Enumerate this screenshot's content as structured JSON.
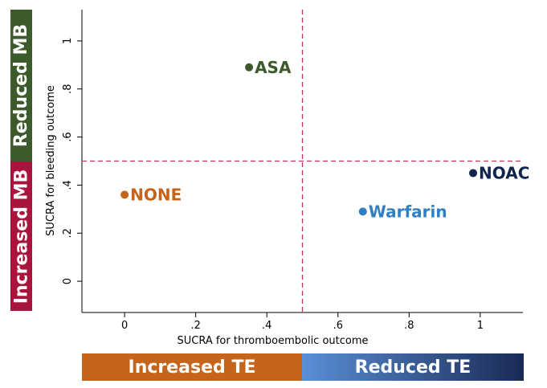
{
  "bands": {
    "reduced_mb": "Reduced MB",
    "increased_mb": "Increased MB",
    "increased_te": "Increased TE",
    "reduced_te": "Reduced TE"
  },
  "colors": {
    "reduced_mb": "#3c5a2a",
    "increased_mb": "#a8143c",
    "increased_te": "#c5641a",
    "reduced_te_start": "#5a8fd6",
    "reduced_te_end": "#1a2a55",
    "reference_lines": "#c8325a"
  },
  "chart_data": {
    "type": "scatter",
    "xlabel": "SUCRA for thromboembolic outcome",
    "ylabel": "SUCRA for bleeding outcome",
    "xlim": [
      -0.12,
      1.12
    ],
    "ylim": [
      -0.13,
      1.13
    ],
    "xticks": [
      0,
      0.2,
      0.4,
      0.6,
      0.8,
      1
    ],
    "xtick_labels": [
      "0",
      ".2",
      ".4",
      ".6",
      ".8",
      "1"
    ],
    "yticks": [
      0,
      0.2,
      0.4,
      0.6,
      0.8,
      1
    ],
    "ytick_labels": [
      "0",
      ".2",
      ".4",
      ".6",
      ".8",
      "1"
    ],
    "reference_lines": {
      "x": 0.5,
      "y": 0.5,
      "style": "dashed"
    },
    "grid": false,
    "points": [
      {
        "label": "ASA",
        "x": 0.35,
        "y": 0.89,
        "color": "#3c5a2a"
      },
      {
        "label": "NOAC",
        "x": 0.98,
        "y": 0.45,
        "color": "#10244e"
      },
      {
        "label": "NONE",
        "x": 0.0,
        "y": 0.36,
        "color": "#c5641a"
      },
      {
        "label": "Warfarin",
        "x": 0.67,
        "y": 0.29,
        "color": "#2f7fc4"
      }
    ]
  }
}
